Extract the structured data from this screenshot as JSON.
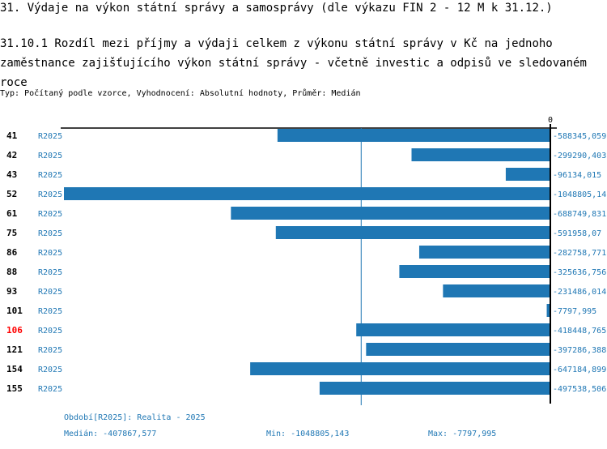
{
  "title": "31. Výdaje na výkon státní správy a samosprávy (dle výkazu FIN 2 - 12 M k 31.12.)",
  "subtitle": "31.10.1 Rozdíl mezi příjmy a výdaji celkem z výkonu státní správy v Kč na jednoho  zaměstnance zajišťujícího výkon státní správy - včetně investic a odpisů ve sledovaném roce",
  "meta": "Typ: Počítaný podle vzorce, Vyhodnocení: Absolutní hodnoty, Průměr: Medián",
  "footer": {
    "period": "Období[R2025]: Realita - 2025",
    "median": "Medián: -407867,577",
    "min": "Min: -1048805,143",
    "max": "Max: -7797,995"
  },
  "colors": {
    "bar": "#1f77b4",
    "highlight": "#ff0000"
  },
  "chart_data": {
    "type": "bar",
    "orientation": "horizontal",
    "zero_label": "0",
    "xlim": [
      -1048805.143,
      0
    ],
    "median": -407867.577,
    "rows": [
      {
        "id": "41",
        "period": "R2025",
        "value": -588345.059,
        "label": "-588345,059"
      },
      {
        "id": "42",
        "period": "R2025",
        "value": -299290.403,
        "label": "-299290,403"
      },
      {
        "id": "43",
        "period": "R2025",
        "value": -96134.015,
        "label": "-96134,015"
      },
      {
        "id": "52",
        "period": "R2025",
        "value": -1048805.143,
        "label": "-1048805,14"
      },
      {
        "id": "61",
        "period": "R2025",
        "value": -688749.831,
        "label": "-688749,831"
      },
      {
        "id": "75",
        "period": "R2025",
        "value": -591958.07,
        "label": "-591958,07"
      },
      {
        "id": "86",
        "period": "R2025",
        "value": -282758.771,
        "label": "-282758,771"
      },
      {
        "id": "88",
        "period": "R2025",
        "value": -325636.756,
        "label": "-325636,756"
      },
      {
        "id": "93",
        "period": "R2025",
        "value": -231486.014,
        "label": "-231486,014"
      },
      {
        "id": "101",
        "period": "R2025",
        "value": -7797.995,
        "label": "-7797,995"
      },
      {
        "id": "106",
        "period": "R2025",
        "value": -418448.765,
        "label": "-418448,765",
        "highlight": true
      },
      {
        "id": "121",
        "period": "R2025",
        "value": -397286.388,
        "label": "-397286,388"
      },
      {
        "id": "154",
        "period": "R2025",
        "value": -647184.899,
        "label": "-647184,899"
      },
      {
        "id": "155",
        "period": "R2025",
        "value": -497538.506,
        "label": "-497538,506"
      }
    ]
  }
}
